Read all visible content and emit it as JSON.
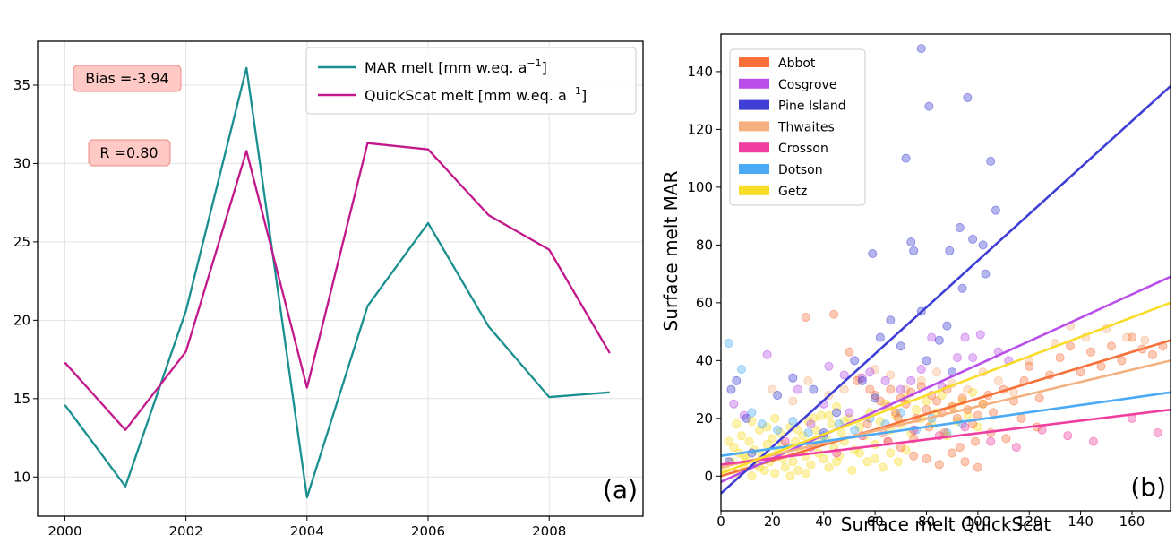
{
  "chart_data": [
    {
      "type": "line",
      "panel_label": "(a)",
      "x": [
        2000,
        2001,
        2002,
        2003,
        2004,
        2005,
        2006,
        2007,
        2008,
        2009
      ],
      "xticks": [
        2000,
        2002,
        2004,
        2006,
        2008
      ],
      "yticks": [
        10,
        15,
        20,
        25,
        30,
        35
      ],
      "xlim": [
        1999.55,
        2009.55
      ],
      "ylim": [
        7.5,
        37.8
      ],
      "grid": true,
      "legend_position": "top-right",
      "series": [
        {
          "name": "MAR melt [mm w.eq. a",
          "name_sup": "−1",
          "name_end": "]",
          "color": "#1a8f8f",
          "values": [
            14.6,
            9.4,
            20.6,
            36.1,
            8.7,
            20.9,
            26.2,
            19.6,
            15.1,
            15.4
          ]
        },
        {
          "name": "QuickScat melt [mm w.eq. a",
          "name_sup": "−1",
          "name_end": "]",
          "color": "#c2188b",
          "values": [
            17.3,
            13.0,
            18.0,
            30.8,
            15.7,
            31.3,
            30.9,
            26.7,
            24.5,
            17.9
          ]
        }
      ],
      "annotations": [
        {
          "text": "Bias =-3.94"
        },
        {
          "text": "R =0.80"
        }
      ]
    },
    {
      "type": "scatter",
      "panel_label": "(b)",
      "xlabel": "Surface melt QuickScat",
      "ylabel": "Surface melt MAR",
      "xlim": [
        0,
        175
      ],
      "ylim": [
        -12,
        153
      ],
      "xticks": [
        0,
        20,
        40,
        60,
        80,
        100,
        120,
        140,
        160
      ],
      "yticks": [
        0,
        20,
        40,
        60,
        80,
        100,
        120,
        140
      ],
      "legend_position": "top-left",
      "series": [
        {
          "name": "Abbot",
          "color": "#f7703a",
          "fit": [
            [
              0,
              0
            ],
            [
              175,
              47
            ]
          ]
        },
        {
          "name": "Cosgrove",
          "color": "#b94ee8",
          "fit": [
            [
              0,
              -2
            ],
            [
              175,
              69
            ]
          ]
        },
        {
          "name": "Pine Island",
          "color": "#3f3fd6",
          "fit": [
            [
              0,
              -6
            ],
            [
              175,
              135
            ]
          ]
        },
        {
          "name": "Thwaites",
          "color": "#f4b07e",
          "fit": [
            [
              0,
              3
            ],
            [
              175,
              40
            ]
          ]
        },
        {
          "name": "Crosson",
          "color": "#f03ea0",
          "fit": [
            [
              0,
              4
            ],
            [
              175,
              23
            ]
          ]
        },
        {
          "name": "Dotson",
          "color": "#4aaaf5",
          "fit": [
            [
              0,
              7
            ],
            [
              175,
              29
            ]
          ]
        },
        {
          "name": "Getz",
          "color": "#f8dc28",
          "fit": [
            [
              0,
              1
            ],
            [
              175,
              60
            ]
          ]
        }
      ],
      "points": {
        "Pine Island": [
          [
            78,
            148
          ],
          [
            81,
            128
          ],
          [
            96,
            131
          ],
          [
            72,
            110
          ],
          [
            105,
            109
          ],
          [
            107,
            92
          ],
          [
            93,
            86
          ],
          [
            102,
            80
          ],
          [
            74,
            81
          ],
          [
            75,
            78
          ],
          [
            89,
            78
          ],
          [
            59,
            77
          ],
          [
            98,
            82
          ],
          [
            103,
            70
          ],
          [
            94,
            65
          ],
          [
            66,
            54
          ],
          [
            78,
            57
          ],
          [
            88,
            52
          ],
          [
            85,
            47
          ],
          [
            70,
            45
          ],
          [
            52,
            40
          ],
          [
            62,
            48
          ],
          [
            80,
            40
          ],
          [
            90,
            36
          ],
          [
            55,
            33
          ],
          [
            36,
            30
          ],
          [
            28,
            34
          ],
          [
            22,
            28
          ],
          [
            4,
            30
          ],
          [
            6,
            33
          ],
          [
            10,
            20
          ],
          [
            45,
            22
          ],
          [
            60,
            27
          ],
          [
            40,
            15
          ],
          [
            12,
            8
          ],
          [
            3,
            5
          ]
        ],
        "Cosgrove": [
          [
            5,
            25
          ],
          [
            9,
            21
          ],
          [
            18,
            42
          ],
          [
            30,
            30
          ],
          [
            42,
            38
          ],
          [
            48,
            35
          ],
          [
            55,
            34
          ],
          [
            64,
            33
          ],
          [
            70,
            30
          ],
          [
            78,
            37
          ],
          [
            86,
            31
          ],
          [
            92,
            41
          ],
          [
            98,
            41
          ],
          [
            101,
            49
          ],
          [
            108,
            43
          ],
          [
            112,
            40
          ],
          [
            40,
            25
          ],
          [
            50,
            22
          ],
          [
            35,
            18
          ],
          [
            58,
            36
          ],
          [
            74,
            33
          ],
          [
            82,
            48
          ],
          [
            95,
            48
          ]
        ],
        "Abbot": [
          [
            33,
            55
          ],
          [
            44,
            56
          ],
          [
            50,
            43
          ],
          [
            53,
            33
          ],
          [
            58,
            30
          ],
          [
            60,
            28
          ],
          [
            62,
            26
          ],
          [
            65,
            24
          ],
          [
            66,
            30
          ],
          [
            68,
            22
          ],
          [
            70,
            27
          ],
          [
            72,
            25
          ],
          [
            74,
            29
          ],
          [
            76,
            20
          ],
          [
            78,
            31
          ],
          [
            80,
            23
          ],
          [
            82,
            28
          ],
          [
            84,
            26
          ],
          [
            86,
            22
          ],
          [
            88,
            30
          ],
          [
            90,
            24
          ],
          [
            92,
            20
          ],
          [
            94,
            27
          ],
          [
            96,
            23
          ],
          [
            98,
            18
          ],
          [
            100,
            21
          ],
          [
            102,
            25
          ],
          [
            104,
            28
          ],
          [
            106,
            22
          ],
          [
            110,
            30
          ],
          [
            114,
            26
          ],
          [
            118,
            33
          ],
          [
            120,
            38
          ],
          [
            124,
            27
          ],
          [
            128,
            35
          ],
          [
            132,
            41
          ],
          [
            136,
            45
          ],
          [
            140,
            36
          ],
          [
            144,
            43
          ],
          [
            148,
            38
          ],
          [
            152,
            45
          ],
          [
            156,
            40
          ],
          [
            160,
            48
          ],
          [
            164,
            44
          ],
          [
            168,
            42
          ],
          [
            172,
            45
          ],
          [
            57,
            18
          ],
          [
            63,
            15
          ],
          [
            69,
            20
          ],
          [
            75,
            13
          ],
          [
            81,
            17
          ],
          [
            87,
            15
          ],
          [
            93,
            10
          ],
          [
            99,
            12
          ],
          [
            105,
            15
          ],
          [
            111,
            13
          ],
          [
            117,
            20
          ],
          [
            123,
            17
          ],
          [
            80,
            6
          ],
          [
            85,
            4
          ],
          [
            90,
            8
          ],
          [
            95,
            5
          ],
          [
            100,
            3
          ],
          [
            75,
            7
          ],
          [
            70,
            10
          ],
          [
            65,
            12
          ]
        ],
        "Thwaites": [
          [
            20,
            30
          ],
          [
            28,
            26
          ],
          [
            34,
            33
          ],
          [
            42,
            28
          ],
          [
            48,
            30
          ],
          [
            54,
            34
          ],
          [
            60,
            37
          ],
          [
            66,
            35
          ],
          [
            72,
            30
          ],
          [
            78,
            33
          ],
          [
            84,
            36
          ],
          [
            90,
            32
          ],
          [
            96,
            30
          ],
          [
            102,
            36
          ],
          [
            108,
            33
          ],
          [
            114,
            29
          ],
          [
            120,
            40
          ],
          [
            130,
            46
          ],
          [
            136,
            52
          ],
          [
            142,
            48
          ],
          [
            150,
            51
          ],
          [
            158,
            48
          ],
          [
            165,
            47
          ]
        ],
        "Crosson": [
          [
            25,
            12
          ],
          [
            35,
            10
          ],
          [
            45,
            8
          ],
          [
            55,
            14
          ],
          [
            65,
            12
          ],
          [
            75,
            16
          ],
          [
            85,
            14
          ],
          [
            95,
            17
          ],
          [
            105,
            12
          ],
          [
            115,
            10
          ],
          [
            125,
            16
          ],
          [
            135,
            14
          ],
          [
            145,
            12
          ],
          [
            160,
            20
          ],
          [
            170,
            15
          ]
        ],
        "Dotson": [
          [
            3,
            46
          ],
          [
            8,
            37
          ],
          [
            12,
            22
          ],
          [
            16,
            18
          ],
          [
            22,
            16
          ],
          [
            28,
            19
          ],
          [
            34,
            15
          ],
          [
            40,
            14
          ],
          [
            46,
            18
          ],
          [
            52,
            16
          ],
          [
            58,
            20
          ],
          [
            64,
            18
          ],
          [
            70,
            22
          ],
          [
            76,
            16
          ],
          [
            82,
            20
          ],
          [
            88,
            15
          ],
          [
            94,
            18
          ]
        ],
        "Getz": [
          [
            2,
            2
          ],
          [
            4,
            5
          ],
          [
            5,
            10
          ],
          [
            6,
            1
          ],
          [
            7,
            8
          ],
          [
            8,
            14
          ],
          [
            9,
            3
          ],
          [
            10,
            6
          ],
          [
            11,
            12
          ],
          [
            12,
            0
          ],
          [
            13,
            9
          ],
          [
            14,
            4
          ],
          [
            15,
            16
          ],
          [
            16,
            7
          ],
          [
            17,
            2
          ],
          [
            18,
            11
          ],
          [
            19,
            5
          ],
          [
            20,
            13
          ],
          [
            21,
            1
          ],
          [
            22,
            8
          ],
          [
            23,
            15
          ],
          [
            24,
            6
          ],
          [
            25,
            3
          ],
          [
            26,
            10
          ],
          [
            27,
            17
          ],
          [
            28,
            5
          ],
          [
            29,
            12
          ],
          [
            30,
            2
          ],
          [
            31,
            9
          ],
          [
            32,
            14
          ],
          [
            33,
            7
          ],
          [
            34,
            19
          ],
          [
            35,
            4
          ],
          [
            36,
            11
          ],
          [
            37,
            16
          ],
          [
            38,
            8
          ],
          [
            39,
            21
          ],
          [
            40,
            6
          ],
          [
            41,
            13
          ],
          [
            42,
            3
          ],
          [
            43,
            18
          ],
          [
            44,
            10
          ],
          [
            45,
            24
          ],
          [
            46,
            7
          ],
          [
            47,
            15
          ],
          [
            48,
            12
          ],
          [
            50,
            20
          ],
          [
            52,
            9
          ],
          [
            54,
            17
          ],
          [
            56,
            14
          ],
          [
            58,
            22
          ],
          [
            60,
            11
          ],
          [
            62,
            19
          ],
          [
            64,
            25
          ],
          [
            66,
            16
          ],
          [
            68,
            21
          ],
          [
            70,
            18
          ],
          [
            72,
            27
          ],
          [
            74,
            15
          ],
          [
            76,
            23
          ],
          [
            78,
            20
          ],
          [
            80,
            26
          ],
          [
            82,
            18
          ],
          [
            84,
            22
          ],
          [
            86,
            28
          ],
          [
            88,
            14
          ],
          [
            90,
            24
          ],
          [
            92,
            19
          ],
          [
            94,
            26
          ],
          [
            96,
            21
          ],
          [
            98,
            29
          ],
          [
            100,
            17
          ],
          [
            102,
            25
          ],
          [
            3,
            12
          ],
          [
            6,
            18
          ],
          [
            9,
            7
          ],
          [
            12,
            19
          ],
          [
            15,
            3
          ],
          [
            18,
            17
          ],
          [
            21,
            20
          ],
          [
            24,
            11
          ],
          [
            27,
            0
          ],
          [
            30,
            16
          ],
          [
            33,
            1
          ],
          [
            36,
            20
          ],
          [
            39,
            13
          ],
          [
            42,
            21
          ],
          [
            45,
            5
          ],
          [
            48,
            19
          ],
          [
            51,
            2
          ],
          [
            54,
            8
          ],
          [
            57,
            5
          ],
          [
            60,
            6
          ],
          [
            63,
            3
          ],
          [
            66,
            8
          ],
          [
            69,
            5
          ],
          [
            72,
            9
          ]
        ]
      }
    }
  ]
}
